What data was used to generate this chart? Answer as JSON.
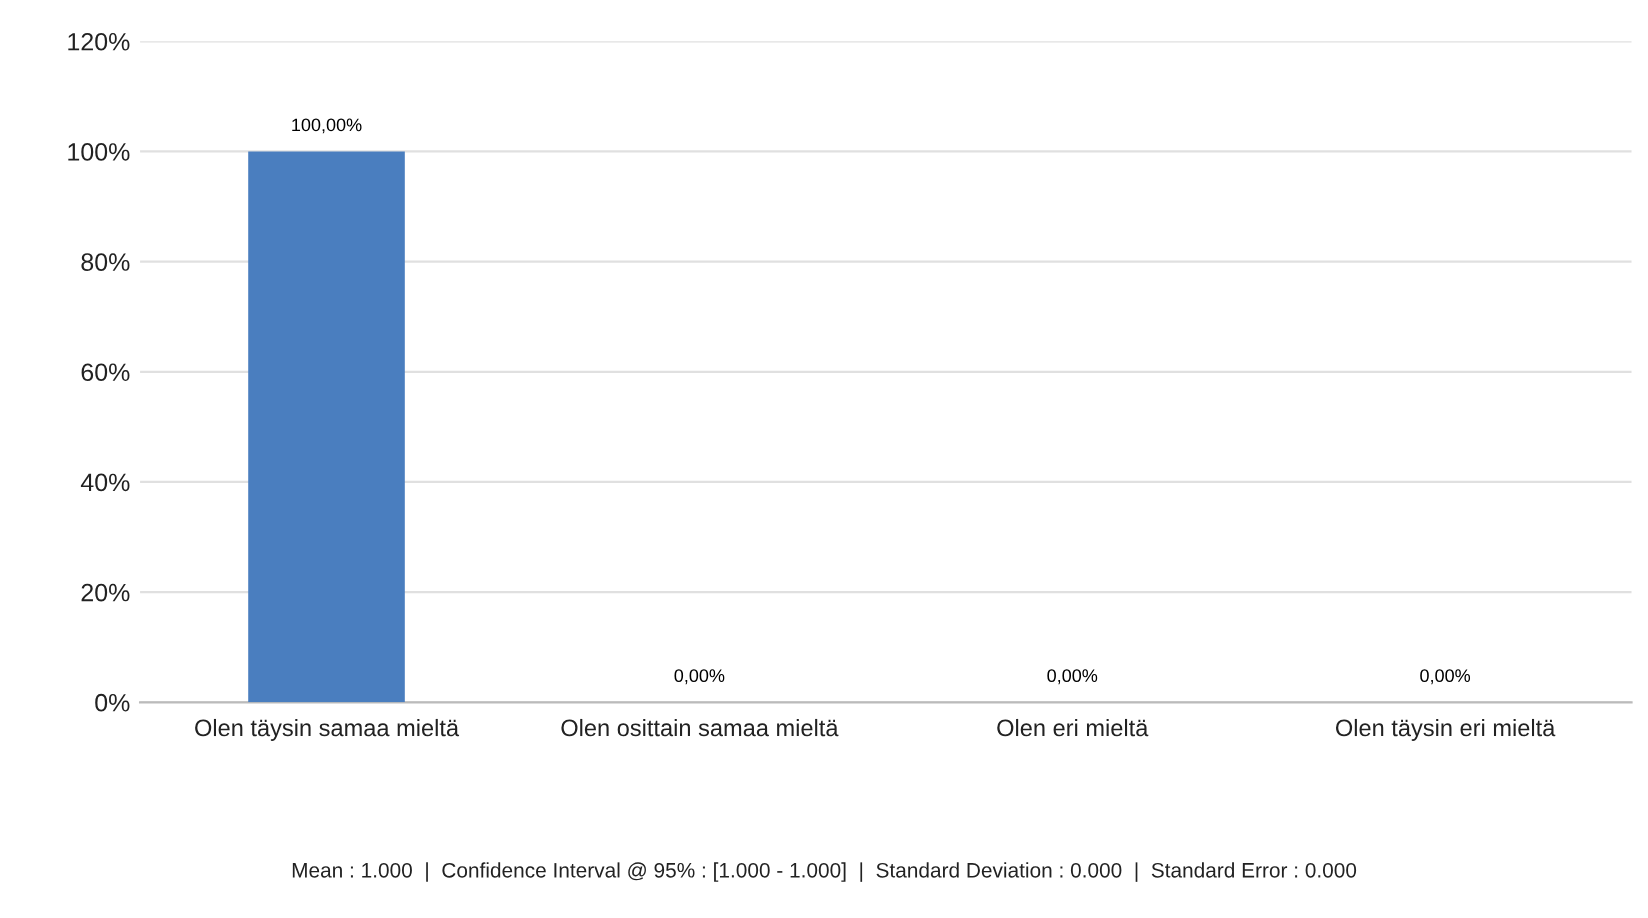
{
  "chart_data": {
    "type": "bar",
    "categories": [
      "Olen täysin samaa mieltä",
      "Olen osittain samaa mieltä",
      "Olen eri mieltä",
      "Olen täysin eri mieltä"
    ],
    "values": [
      100,
      0,
      0,
      0
    ],
    "value_labels": [
      "100,00%",
      "0,00%",
      "0,00%",
      "0,00%"
    ],
    "color": "#4a7ebf",
    "ylim": [
      0,
      120
    ],
    "yticks": [
      {
        "value": 0,
        "label": "0%"
      },
      {
        "value": 20,
        "label": "20%"
      },
      {
        "value": 40,
        "label": "40%"
      },
      {
        "value": 60,
        "label": "60%"
      },
      {
        "value": 80,
        "label": "80%"
      },
      {
        "value": 100,
        "label": "100%"
      },
      {
        "value": 120,
        "label": "120%"
      }
    ],
    "grid": "y",
    "legend": false,
    "annotations": [
      "Mean : 1.000  |  Confidence Interval @ 95% : [1.000 - 1.000]  |  Standard Deviation : 0.000  |  Standard Error : 0.000"
    ]
  }
}
